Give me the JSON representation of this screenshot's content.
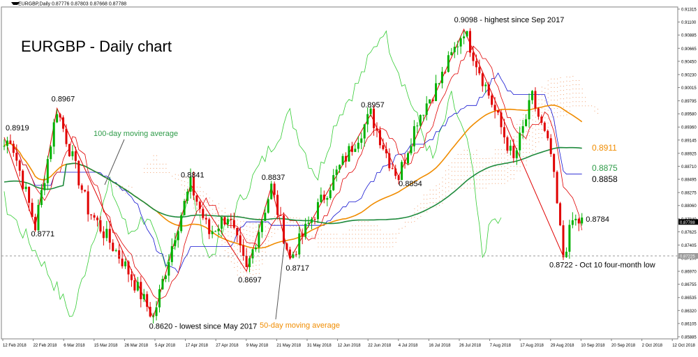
{
  "header": {
    "symbol": "EURGBP,Daily",
    "ohlc": "0.87776 0.87803 0.87668 0.87788"
  },
  "chart_data": {
    "type": "candlestick",
    "title": "EURGBP - Daily chart",
    "ylim": [
      0.8585,
      0.9135
    ],
    "y_ticks": [
      "0.91315",
      "0.91100",
      "0.90885",
      "0.90665",
      "0.90450",
      "0.90230",
      "0.90015",
      "0.89795",
      "0.89580",
      "0.89360",
      "0.89145",
      "0.88925",
      "0.88710",
      "0.88495",
      "0.88275",
      "0.88060",
      "0.87840",
      "0.87625",
      "0.87405",
      "0.87190",
      "0.86970",
      "0.86755",
      "0.86535",
      "0.86320",
      "0.86105",
      "0.85885"
    ],
    "current_price_label": "0.87788",
    "support_level_label": "0.87225",
    "support_level": 0.87225,
    "x_ticks": [
      "12 Feb 2018",
      "22 Feb 2018",
      "6 Mar 2018",
      "15 Mar 2018",
      "26 Mar 2018",
      "5 Apr 2018",
      "17 Apr 2018",
      "27 Apr 2018",
      "9 May 2018",
      "21 May 2018",
      "31 May 2018",
      "12 Jun 2018",
      "22 Jun 2018",
      "4 Jul 2018",
      "16 Jul 2018",
      "26 Jul 2018",
      "7 Aug 2018",
      "17 Aug 2018",
      "29 Aug 2018",
      "10 Sep 2018",
      "20 Sep 2018",
      "2 Oct 2018",
      "12 Oct 2018"
    ],
    "key_points": [
      {
        "label": "0.8919",
        "value": 0.8919,
        "bar": 0
      },
      {
        "label": "0.8771",
        "value": 0.8771,
        "bar": 10
      },
      {
        "label": "0.8967",
        "value": 0.8967,
        "bar": 17
      },
      {
        "label": "0.8620 - lowest since May 2017",
        "value": 0.862,
        "bar": 48
      },
      {
        "label": "0.8841",
        "value": 0.8841,
        "bar": 60
      },
      {
        "label": "0.8697",
        "value": 0.8697,
        "bar": 78
      },
      {
        "label": "0.8837",
        "value": 0.8837,
        "bar": 86
      },
      {
        "label": "0.8717",
        "value": 0.8717,
        "bar": 92
      },
      {
        "label": "0.8957",
        "value": 0.8957,
        "bar": 118
      },
      {
        "label": "0.8854",
        "value": 0.8854,
        "bar": 127
      },
      {
        "label": "0.9098 - highest since Sep 2017",
        "value": 0.9098,
        "bar": 148
      },
      {
        "label": "0.8722 - Oct 10 four-month low",
        "value": 0.8722,
        "bar": 180
      },
      {
        "label": "0.8784",
        "value": 0.8784,
        "bar": 185
      }
    ],
    "series": [
      {
        "name": "100-day moving average",
        "color": "#1e8a3c",
        "value_label": "0.8875",
        "value": 0.8875
      },
      {
        "name": "50-day moving average",
        "color": "#f08c00",
        "value_label": "0.8911",
        "value": 0.8911
      },
      {
        "name": "Kijun-sen",
        "color": "#1010d0",
        "value_label": "0.8858",
        "value": 0.8858
      },
      {
        "name": "Tenkan-sen",
        "color": "#e00000"
      },
      {
        "name": "Chikou span",
        "color": "#33cc33"
      },
      {
        "name": "Ichimoku cloud",
        "color": "#f0a070"
      }
    ],
    "annotations": {
      "ma100_label": "100-day moving average",
      "ma50_label": "50-day moving average",
      "label_0911": "0.8911",
      "label_0875": "0.8875",
      "label_0858": "0.8858"
    },
    "colors": {
      "bull": "#00b000",
      "bear": "#e00000"
    }
  }
}
